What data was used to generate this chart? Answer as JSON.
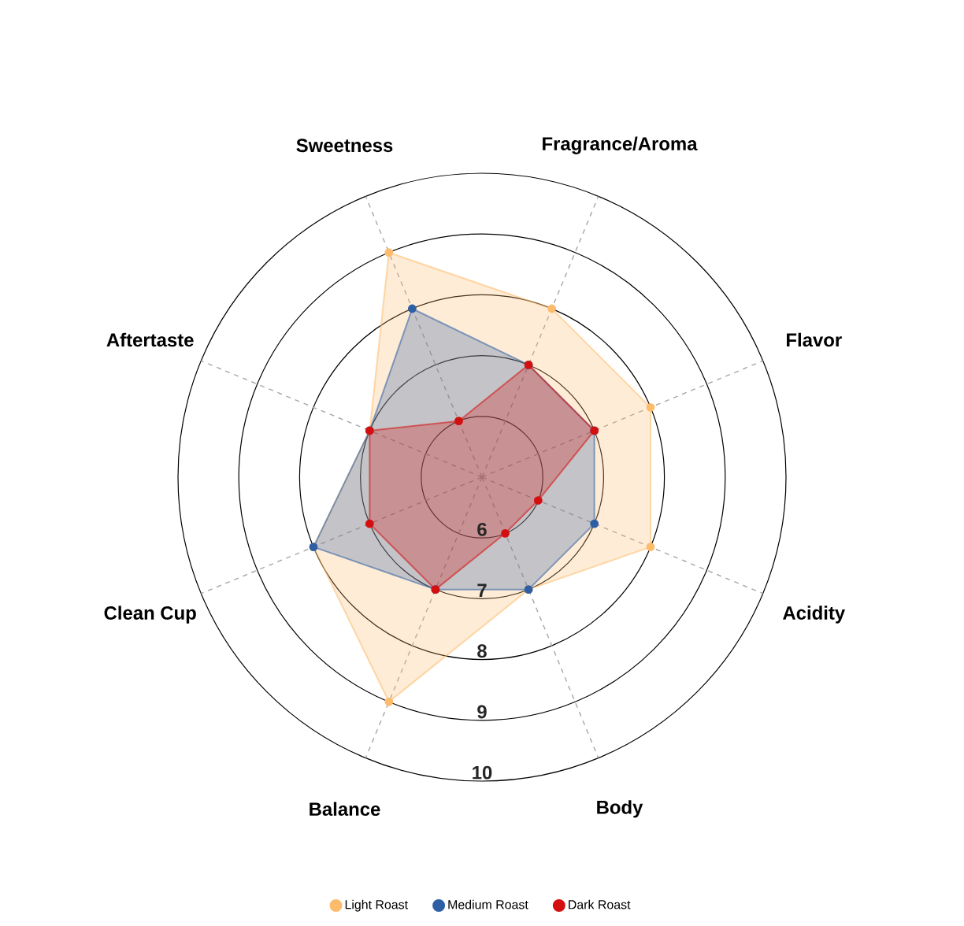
{
  "chart_data": {
    "type": "radar",
    "categories": [
      "Fragrance/Aroma",
      "Flavor",
      "Acidity",
      "Body",
      "Balance",
      "Clean Cup",
      "Aftertaste",
      "Sweetness"
    ],
    "series": [
      {
        "name": "Light Roast",
        "color": "#fdbb6c",
        "values": [
          8,
          8,
          8,
          7,
          9,
          8,
          7,
          9
        ]
      },
      {
        "name": "Medium Roast",
        "color": "#2e5fa4",
        "values": [
          7,
          7,
          7,
          7,
          7,
          8,
          7,
          8
        ]
      },
      {
        "name": "Dark Roast",
        "color": "#d40f0f",
        "values": [
          7,
          7,
          6,
          6,
          7,
          7,
          7,
          6
        ]
      }
    ],
    "ylim": [
      5,
      10
    ],
    "yticks": [
      6,
      7,
      8,
      9,
      10
    ],
    "grid": true,
    "legend": "bottom",
    "marker": "circle",
    "line_style": "solid"
  }
}
